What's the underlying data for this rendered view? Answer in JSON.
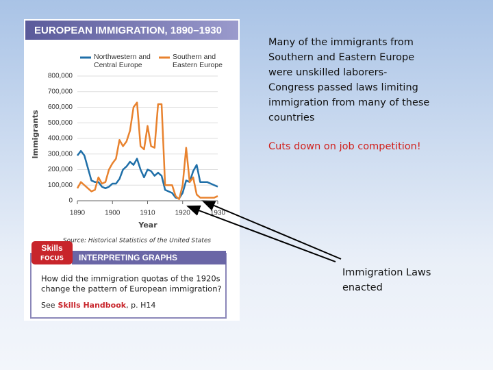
{
  "chart_data": {
    "type": "line",
    "title": "EUROPEAN IMMIGRATION, 1890–1930",
    "xlabel": "Year",
    "ylabel": "Immigrants",
    "source": "Source: Historical Statistics of the United States",
    "x": [
      1890,
      1891,
      1892,
      1893,
      1894,
      1895,
      1896,
      1897,
      1898,
      1899,
      1900,
      1901,
      1902,
      1903,
      1904,
      1905,
      1906,
      1907,
      1908,
      1909,
      1910,
      1911,
      1912,
      1913,
      1914,
      1915,
      1916,
      1917,
      1918,
      1919,
      1920,
      1921,
      1922,
      1923,
      1924,
      1925,
      1926,
      1927,
      1928,
      1929,
      1930
    ],
    "series": [
      {
        "name": "Northwestern and Central Europe",
        "color": "#1f6fa8",
        "values": [
          290000,
          320000,
          290000,
          210000,
          130000,
          120000,
          120000,
          90000,
          80000,
          90000,
          110000,
          110000,
          140000,
          200000,
          220000,
          250000,
          230000,
          270000,
          200000,
          150000,
          200000,
          190000,
          160000,
          180000,
          160000,
          70000,
          60000,
          50000,
          20000,
          15000,
          50000,
          130000,
          120000,
          190000,
          230000,
          120000,
          120000,
          120000,
          110000,
          100000,
          90000
        ]
      },
      {
        "name": "Southern and Eastern Europe",
        "color": "#e8822e",
        "values": [
          80000,
          120000,
          100000,
          80000,
          60000,
          70000,
          150000,
          110000,
          120000,
          200000,
          240000,
          270000,
          390000,
          350000,
          380000,
          450000,
          600000,
          630000,
          350000,
          330000,
          480000,
          350000,
          340000,
          620000,
          620000,
          100000,
          100000,
          100000,
          30000,
          10000,
          100000,
          340000,
          120000,
          150000,
          40000,
          20000,
          20000,
          20000,
          20000,
          20000,
          30000
        ]
      }
    ],
    "xlim": [
      1890,
      1930
    ],
    "xticks": [
      1890,
      1900,
      1910,
      1920,
      1930
    ],
    "ylim": [
      0,
      800000
    ],
    "yticks": [
      0,
      {
        "value": 100000,
        "label": "100,000"
      },
      {
        "value": 200000,
        "label": "200,000"
      },
      {
        "value": 300000,
        "label": "300,000"
      },
      {
        "value": 400000,
        "label": "400,000"
      },
      {
        "value": 500000,
        "label": "500,000"
      },
      {
        "value": 600000,
        "label": "600,000"
      },
      {
        "value": 700000,
        "label": "700,000"
      },
      {
        "value": 800000,
        "label": "800,000"
      }
    ],
    "grid": true
  },
  "skills": {
    "badge_top": "Skills",
    "badge_bottom": "FOCUS",
    "heading": "INTERPRETING GRAPHS",
    "question": [
      "How did the immigration quotas of the 1920s",
      "change the pattern of European immigration?"
    ],
    "see": "See",
    "handbook": "Skills Handbook",
    "page": ", p. H14"
  },
  "slide": {
    "notes": [
      "Many of the immigrants from",
      "Southern and Eastern Europe",
      "were unskilled laborers-",
      "Congress passed laws limiting",
      "immigration from many of these",
      "countries"
    ],
    "highlight": "Cuts down on job competition!",
    "callout": [
      "Immigration Laws",
      "enacted"
    ]
  }
}
